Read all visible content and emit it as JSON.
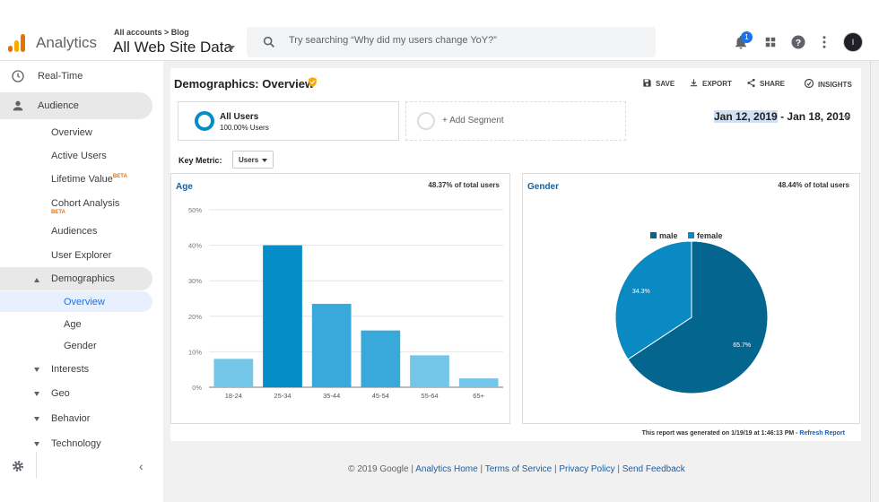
{
  "app": {
    "brand": "Analytics",
    "account_crumb": "All accounts > Blog",
    "account_name": "All Web Site Data"
  },
  "search": {
    "placeholder": "Try searching “Why did my users change YoY?”"
  },
  "header": {
    "notification_count": "1",
    "avatar_initial": "l"
  },
  "sidebar": {
    "top_items": [
      {
        "label": "Real-Time",
        "icon": "clock-icon"
      },
      {
        "label": "Audience",
        "icon": "person-icon"
      }
    ],
    "audience_items": [
      "Overview",
      "Active Users",
      "Lifetime Value",
      "Cohort Analysis",
      "Audiences",
      "User Explorer"
    ],
    "beta_label": "BETA",
    "demographics": {
      "label": "Demographics",
      "children": [
        "Overview",
        "Age",
        "Gender"
      ]
    },
    "collapsed_items": [
      "Interests",
      "Geo",
      "Behavior",
      "Technology"
    ]
  },
  "report": {
    "title": "Demographics: Overview",
    "tools": [
      "SAVE",
      "EXPORT",
      "SHARE",
      "INSIGHTS"
    ],
    "segment": {
      "name": "All Users",
      "detail": "100.00% Users"
    },
    "add_segment": "+ Add Segment",
    "date_start": "Jan 12, 2019",
    "date_rest": " - Jan 18, 2019",
    "key_metric_label": "Key Metric:",
    "key_metric_value": "Users",
    "footnote": "This report was generated on 1/19/19 at 1:46:13 PM - ",
    "refresh": "Refresh Report"
  },
  "footer": {
    "copyright": "© 2019 Google",
    "links": [
      "Analytics Home",
      "Terms of Service",
      "Privacy Policy",
      "Send Feedback"
    ]
  },
  "colors": {
    "bar_dark": "#058dc7",
    "bar_mid": "#39a9dc",
    "bar_light": "#74c6e9",
    "pie_male": "#04668f",
    "pie_female": "#0a8ac2"
  },
  "chart_data": [
    {
      "type": "bar",
      "title": "Age",
      "subtitle": "48.37% of total users",
      "categories": [
        "18-24",
        "25-34",
        "35-44",
        "45-54",
        "55-64",
        "65+"
      ],
      "values": [
        8,
        40,
        23.5,
        16,
        9,
        2.5
      ],
      "ylim": [
        0,
        50
      ],
      "yticks": [
        "0%",
        "10%",
        "20%",
        "30%",
        "40%",
        "50%"
      ],
      "grid": true
    },
    {
      "type": "pie",
      "title": "Gender",
      "subtitle": "48.44% of total users",
      "labels": [
        "male",
        "female"
      ],
      "values": [
        65.7,
        34.3
      ],
      "value_labels": [
        "65.7%",
        "34.3%"
      ],
      "legend": "top"
    }
  ]
}
